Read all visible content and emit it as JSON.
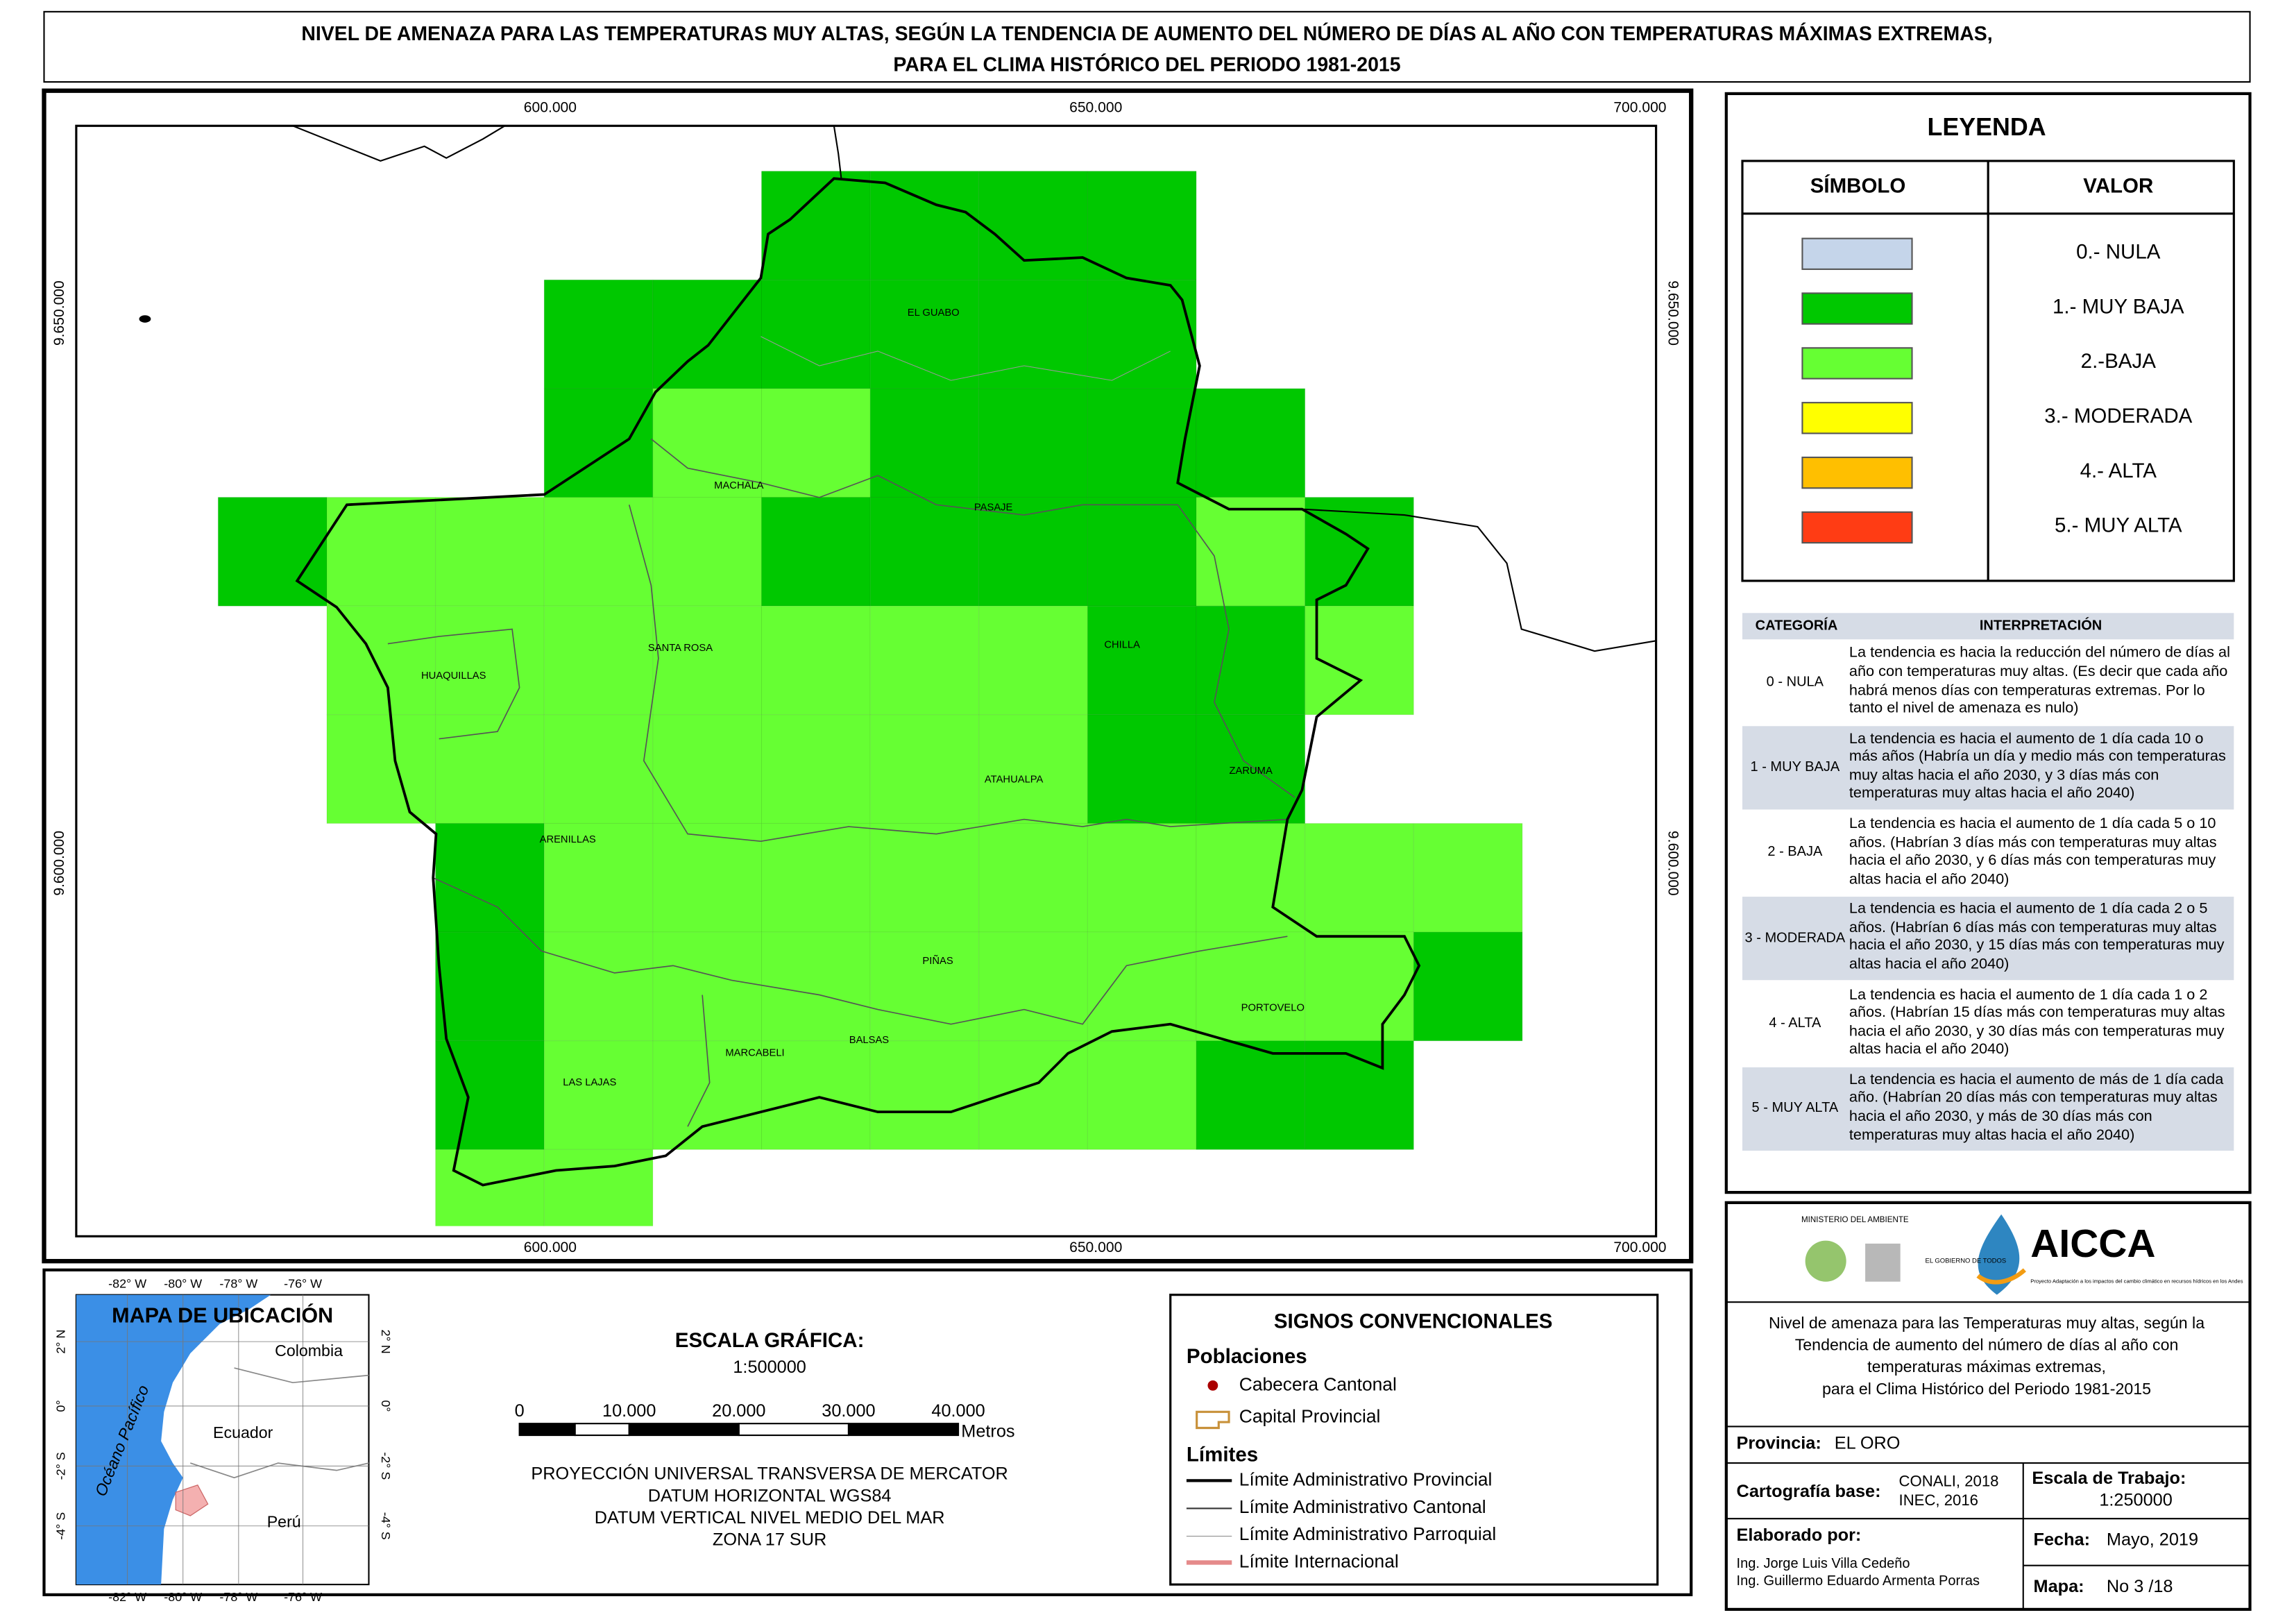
{
  "header": {
    "title": [
      "NIVEL DE AMENAZA PARA LAS TEMPERATURAS MUY ALTAS, SEGÚN LA TENDENCIA DE AUMENTO DEL NÚMERO DE DÍAS AL AÑO CON TEMPERATURAS MÁXIMAS EXTREMAS,",
      "PARA EL CLIMA HISTÓRICO DEL PERIODO 1981-2015"
    ]
  },
  "map": {
    "x_labels": [
      "600.000",
      "650.000",
      "700.000"
    ],
    "y_labels": [
      "9.650.000",
      "9.600.000"
    ],
    "places": [
      "EL GUABO",
      "MACHALA",
      "PASAJE",
      "SANTA ROSA",
      "HUAQUILLAS",
      "CHILLA",
      "ZARUMA",
      "ATAHUALPA",
      "ARENILLAS",
      "PIÑAS",
      "PORTOVELO",
      "MARCABELI",
      "BALSAS",
      "LAS LAJAS"
    ],
    "grid": [
      [
        null,
        null,
        null,
        null,
        null,
        1,
        1,
        1,
        1,
        null,
        null,
        null,
        null
      ],
      [
        null,
        null,
        null,
        1,
        1,
        1,
        1,
        1,
        1,
        null,
        null,
        null,
        null
      ],
      [
        null,
        null,
        null,
        1,
        2,
        2,
        1,
        1,
        1,
        1,
        null,
        null,
        null
      ],
      [
        1,
        2,
        2,
        2,
        2,
        1,
        1,
        1,
        1,
        2,
        1,
        null,
        null
      ],
      [
        null,
        2,
        2,
        2,
        2,
        2,
        2,
        2,
        1,
        1,
        2,
        null,
        null
      ],
      [
        null,
        2,
        2,
        2,
        2,
        2,
        2,
        2,
        1,
        1,
        null,
        null,
        null
      ],
      [
        null,
        null,
        1,
        2,
        2,
        2,
        2,
        2,
        2,
        2,
        2,
        2,
        null
      ],
      [
        null,
        null,
        1,
        2,
        2,
        2,
        2,
        2,
        2,
        2,
        2,
        1,
        null
      ],
      [
        null,
        null,
        1,
        2,
        2,
        2,
        2,
        2,
        2,
        1,
        1,
        null,
        null
      ],
      [
        null,
        null,
        2,
        2,
        null,
        null,
        null,
        null,
        null,
        null,
        null,
        null,
        null
      ]
    ]
  },
  "legend": {
    "title": "LEYENDA",
    "symbol_header": "SÍMBOLO",
    "value_header": "VALOR",
    "items": [
      {
        "label": "0.- NULA",
        "color": "#c5d5ea"
      },
      {
        "label": "1.- MUY BAJA",
        "color": "#00c800"
      },
      {
        "label": "2.-BAJA",
        "color": "#66ff33"
      },
      {
        "label": "3.- MODERADA",
        "color": "#ffff00"
      },
      {
        "label": "4.- ALTA",
        "color": "#ffbf00"
      },
      {
        "label": "5.- MUY ALTA",
        "color": "#ff3c14"
      }
    ]
  },
  "interpretation": {
    "headers": [
      "CATEGORÍA",
      "INTERPRETACIÓN"
    ],
    "rows": [
      [
        "0 - NULA",
        "La tendencia es hacia la reducción del número de días al año con temperaturas muy altas. (Es decir que cada año habrá menos días con temperaturas extremas. Por lo tanto el nivel de amenaza es nulo)"
      ],
      [
        "1 - MUY BAJA",
        "La tendencia es hacia el aumento de 1 día cada 10 o más años (Habría un día y medio más con temperaturas muy altas hacia el año 2030, y 3 días más con temperaturas muy altas hacia el año 2040)"
      ],
      [
        "2 - BAJA",
        "La tendencia es hacia el aumento de 1 día cada 5 o 10 años. (Habrían 3 días más con temperaturas muy altas hacia el año 2030, y 6 días más con temperaturas muy altas hacia el año 2040)"
      ],
      [
        "3 - MODERADA",
        "La tendencia es hacia el aumento de 1 día cada 2 o 5 años. (Habrían 6 días más con temperaturas muy altas hacia el año 2030, y 15 días más con temperaturas muy altas hacia el año 2040)"
      ],
      [
        "4 - ALTA",
        "La tendencia es hacia el aumento de 1 día cada 1 o 2 años. (Habrían 15 días más con temperaturas muy altas hacia el año 2030, y 30 días más con temperaturas muy altas hacia el año 2040)"
      ],
      [
        "5 - MUY ALTA",
        "La tendencia es hacia el aumento de más de 1 día cada año. (Habrían 20 días más con temperaturas muy altas hacia el año 2030, y más de 30 días más con temperaturas muy altas hacia el año 2040)"
      ]
    ]
  },
  "inset": {
    "title": "MAPA DE UBICACIÓN",
    "lon_labels": [
      "-82° W",
      "-80° W",
      "-78° W",
      "-76° W"
    ],
    "lat_labels": [
      "2° N",
      "0°",
      "-2° S",
      "-4° S"
    ],
    "countries": [
      "Colombia",
      "Ecuador",
      "Perú"
    ],
    "ocean": "Océano Pacífico"
  },
  "scale": {
    "title": "ESCALA GRÁFICA:",
    "ratio": "1:500000",
    "labels": [
      "0",
      "10.000",
      "20.000",
      "30.000",
      "40.000"
    ],
    "unit": "Metros",
    "projection": [
      "PROYECCIÓN UNIVERSAL TRANSVERSA DE MERCATOR",
      "DATUM HORIZONTAL WGS84",
      "DATUM VERTICAL NIVEL MEDIO DEL MAR",
      "ZONA 17 SUR"
    ]
  },
  "signs": {
    "title": "SIGNOS CONVENCIONALES",
    "populations_title": "Poblaciones",
    "populations": [
      "Cabecera Cantonal",
      "Capital Provincial"
    ],
    "limits_title": "Límites",
    "limits": [
      "Límite Administrativo Provincial",
      "Límite Administrativo Cantonal",
      "Límite Administrativo Parroquial",
      "Límite Internacional"
    ]
  },
  "info": {
    "ministry": "MINISTERIO DEL AMBIENTE",
    "government": "EL GOBIERNO DE TODOS",
    "logo": "AICCA",
    "project": "Proyecto Adaptación a los impactos del cambio climático en recursos hídricos en los Andes",
    "description": [
      "Nivel de amenaza para las Temperaturas muy altas, según la",
      "Tendencia de aumento del número de días al año con",
      "temperaturas máximas extremas,",
      "para el Clima Histórico del Periodo 1981-2015"
    ],
    "province_label": "Provincia:",
    "province": "EL ORO",
    "base_label": "Cartografía base:",
    "base": [
      "CONALI, 2018",
      "INEC, 2016"
    ],
    "scale_label": "Escala de Trabajo:",
    "scale": "1:250000",
    "authors_label": "Elaborado por:",
    "authors": [
      "Ing. Jorge Luis Villa Cedeño",
      "Ing. Guillermo Eduardo Armenta Porras"
    ],
    "date_label": "Fecha:",
    "date": "Mayo, 2019",
    "map_label": "Mapa:",
    "map_number": "No 3 /18"
  }
}
